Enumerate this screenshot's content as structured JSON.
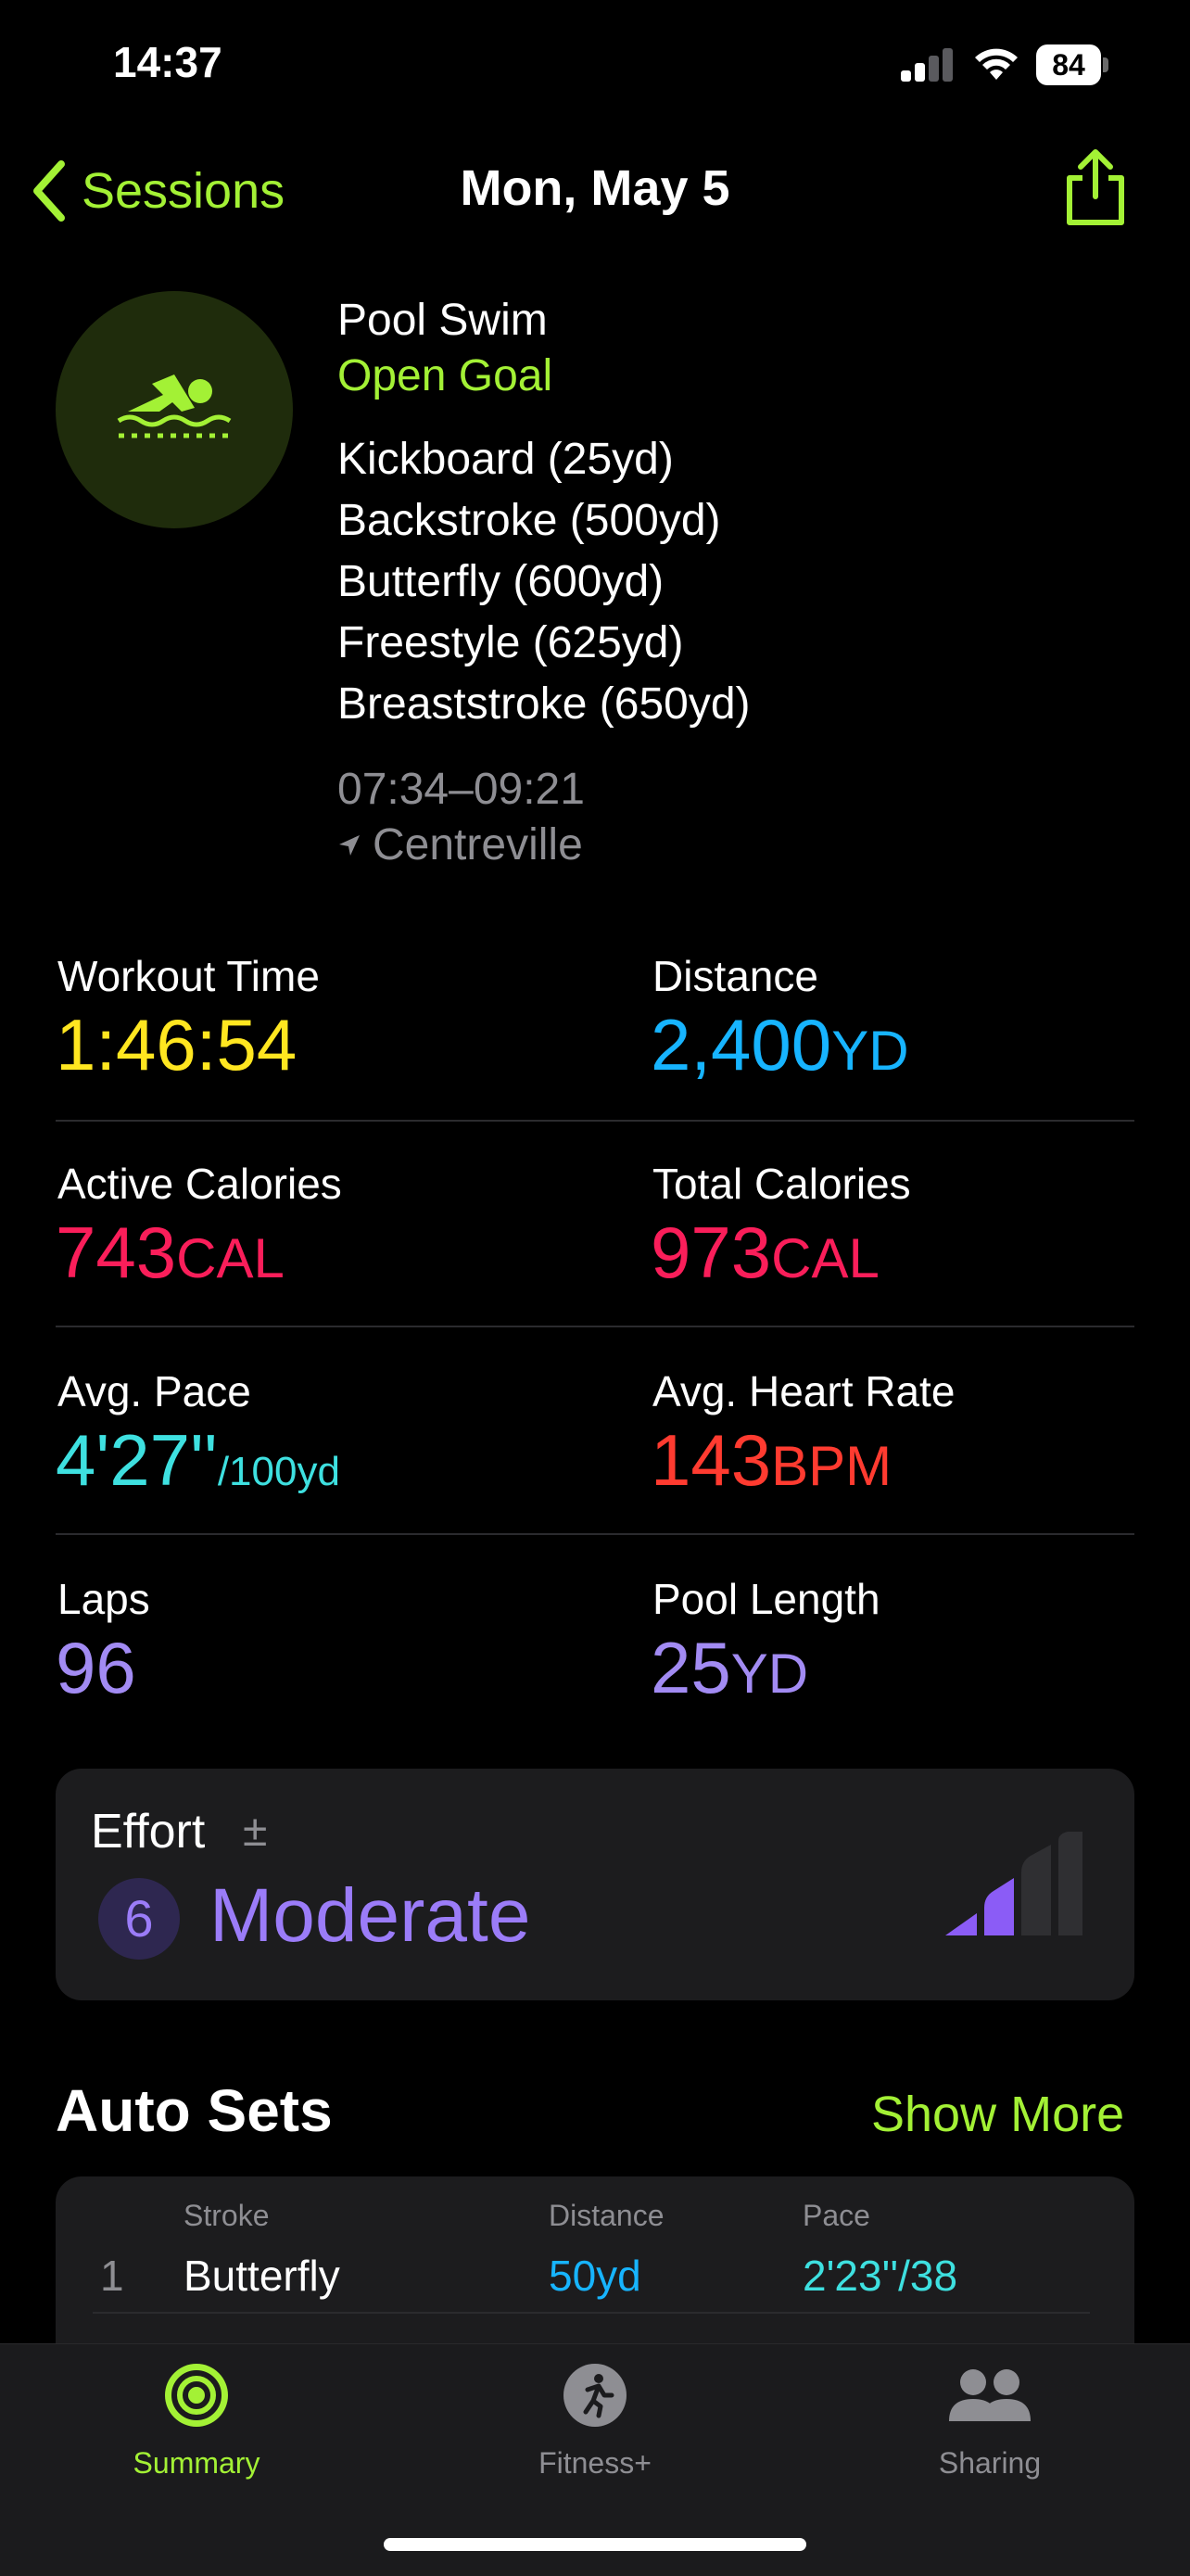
{
  "status_bar": {
    "time": "14:37",
    "battery": "84"
  },
  "nav": {
    "back_label": "Sessions",
    "title": "Mon, May 5",
    "share_icon": "share-icon"
  },
  "workout": {
    "type": "Pool Swim",
    "goal": "Open Goal",
    "strokes": [
      "Kickboard (25yd)",
      "Backstroke (500yd)",
      "Butterfly (600yd)",
      "Freestyle (625yd)",
      "Breaststroke (650yd)"
    ],
    "time_range": "07:34–09:21",
    "location": "Centreville",
    "icon": "swimmer-icon",
    "accent_color": "#a3f135"
  },
  "metrics": {
    "workout_time": {
      "label": "Workout Time",
      "value": "1:46:54",
      "color": "#ffe620"
    },
    "distance": {
      "label": "Distance",
      "value": "2,400",
      "unit": "YD",
      "color": "#17b4ff"
    },
    "active_calories": {
      "label": "Active Calories",
      "value": "743",
      "unit": "CAL",
      "color": "#fa1e5a"
    },
    "total_calories": {
      "label": "Total Calories",
      "value": "973",
      "unit": "CAL",
      "color": "#fa1e5a"
    },
    "avg_pace": {
      "label": "Avg. Pace",
      "value": "4'27''",
      "unit": "/100yd",
      "color": "#3ee0e0"
    },
    "avg_heart_rate": {
      "label": "Avg. Heart Rate",
      "value": "143",
      "unit": "BPM",
      "color": "#ff3b30"
    },
    "laps": {
      "label": "Laps",
      "value": "96",
      "color": "#a28bf3"
    },
    "pool_length": {
      "label": "Pool Length",
      "value": "25",
      "unit": "YD",
      "color": "#a28bf3"
    }
  },
  "effort": {
    "label": "Effort",
    "edit_symbol": "±",
    "score": "6",
    "level": "Moderate",
    "bars_filled": 2,
    "bars_total": 4,
    "color": "#9b7cf8"
  },
  "auto_sets": {
    "title": "Auto Sets",
    "show_more": "Show More",
    "columns": [
      "Stroke",
      "Distance",
      "Pace"
    ],
    "rows": [
      {
        "index": "1",
        "stroke": "Butterfly",
        "distance": "50yd",
        "pace": "2'23''/38"
      }
    ]
  },
  "tab_bar": {
    "tabs": [
      {
        "label": "Summary",
        "icon": "activity-rings-icon",
        "active": true
      },
      {
        "label": "Fitness+",
        "icon": "running-figure-icon",
        "active": false
      },
      {
        "label": "Sharing",
        "icon": "people-icon",
        "active": false
      }
    ]
  }
}
